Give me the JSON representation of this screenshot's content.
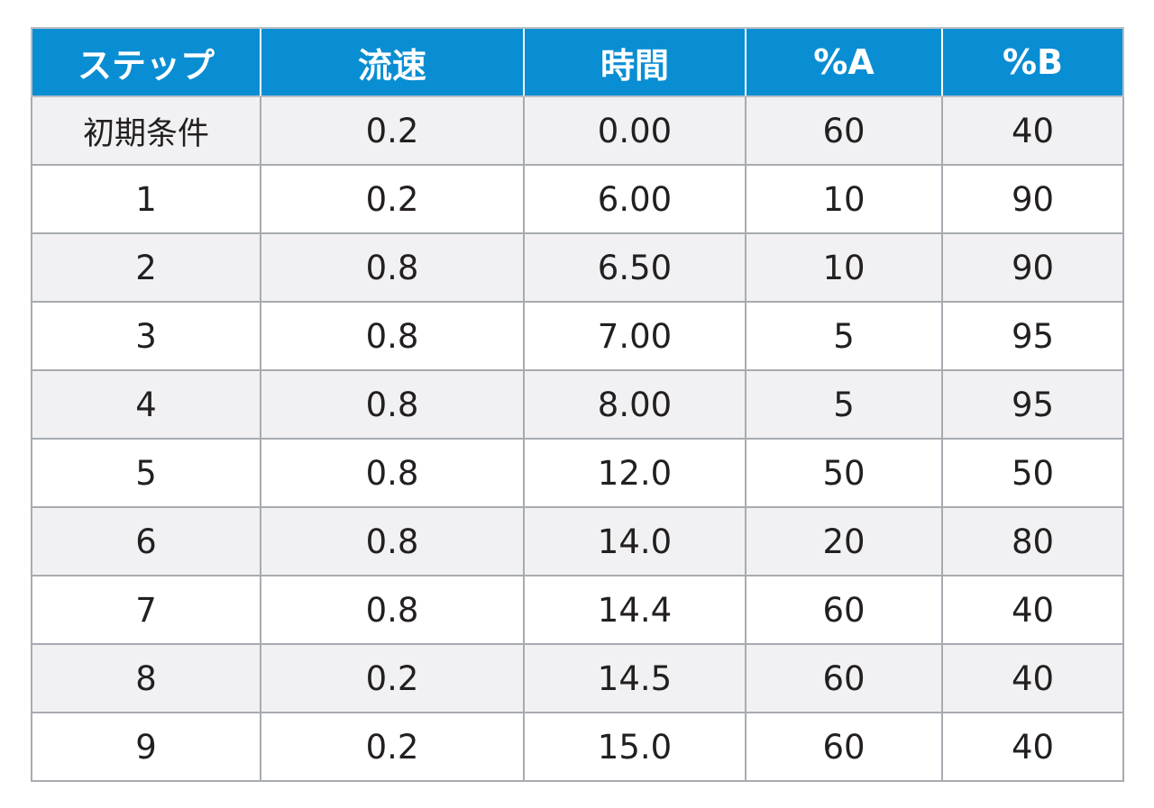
{
  "table": {
    "headers": [
      "ステップ",
      "流速",
      "時間",
      "%A",
      "%B"
    ],
    "rows": [
      [
        "初期条件",
        "0.2",
        "0.00",
        "60",
        "40"
      ],
      [
        "1",
        "0.2",
        "6.00",
        "10",
        "90"
      ],
      [
        "2",
        "0.8",
        "6.50",
        "10",
        "90"
      ],
      [
        "3",
        "0.8",
        "7.00",
        "5",
        "95"
      ],
      [
        "4",
        "0.8",
        "8.00",
        "5",
        "95"
      ],
      [
        "5",
        "0.8",
        "12.0",
        "50",
        "50"
      ],
      [
        "6",
        "0.8",
        "14.0",
        "20",
        "80"
      ],
      [
        "7",
        "0.8",
        "14.4",
        "60",
        "40"
      ],
      [
        "8",
        "0.2",
        "14.5",
        "60",
        "40"
      ],
      [
        "9",
        "0.2",
        "15.0",
        "60",
        "40"
      ]
    ]
  },
  "colors": {
    "header_background": "#0a8ed3",
    "header_text": "#ffffff",
    "row_shaded": "#f1f1f3",
    "row_plain": "#ffffff",
    "grid_line": "#a7abb1"
  }
}
